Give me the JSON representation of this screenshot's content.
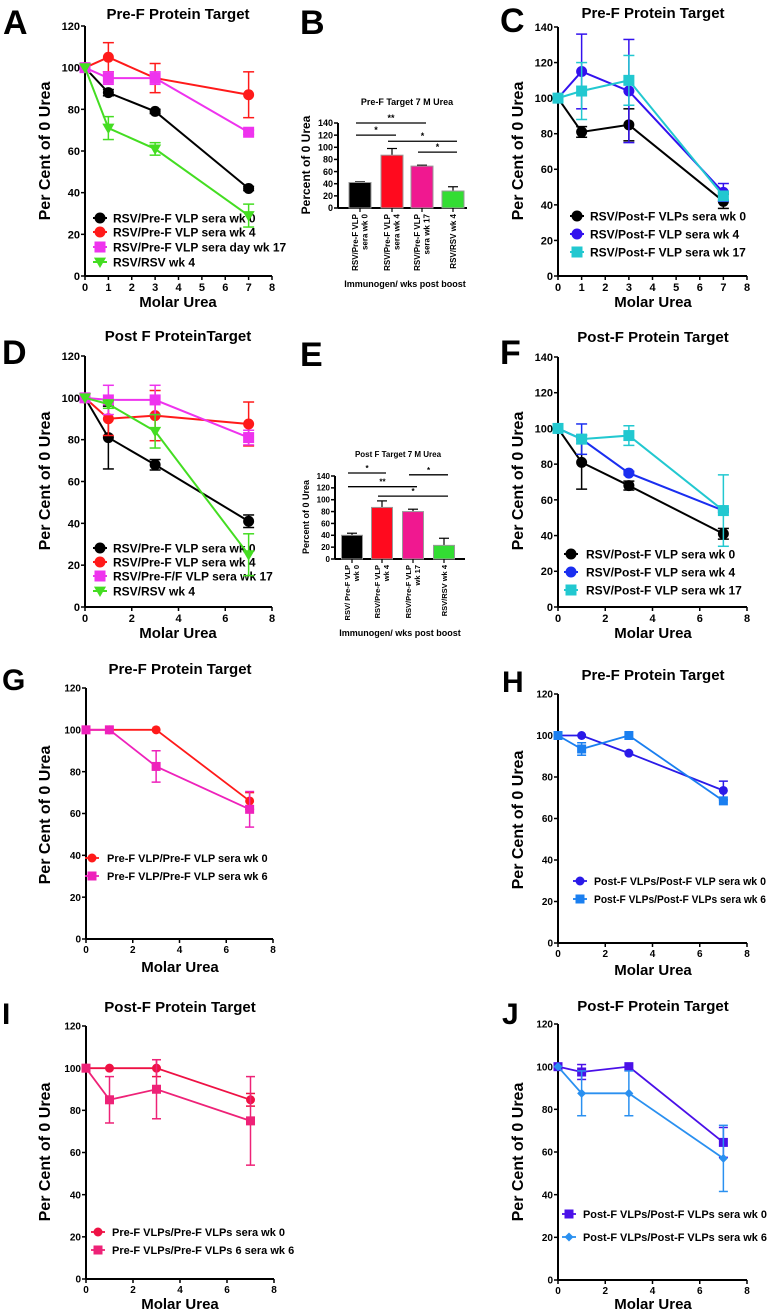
{
  "chart_data": [
    {
      "id": "A",
      "letter": "A",
      "type": "line",
      "title": "Pre-F Protein Target",
      "xlabel": "Molar Urea",
      "ylabel": "Per Cent of 0 Urea",
      "xlim": [
        0,
        8
      ],
      "ylim": [
        0,
        120
      ],
      "xticks": [
        0,
        1,
        2,
        3,
        4,
        5,
        6,
        7,
        8
      ],
      "yticks": [
        0,
        20,
        40,
        60,
        80,
        100,
        120
      ],
      "legend_position": "bottom-left",
      "series": [
        {
          "name": "RSV/Pre-F VLP sera wk 0",
          "color": "#000000",
          "marker": "circle",
          "x": [
            0,
            1,
            3,
            7
          ],
          "y": [
            100,
            88,
            79,
            42
          ],
          "err": [
            0,
            1.5,
            1,
            1
          ]
        },
        {
          "name": "RSV/Pre-F VLP sera wk 4",
          "color": "#ff1a1a",
          "marker": "circle",
          "x": [
            0,
            1,
            3,
            7
          ],
          "y": [
            100,
            105,
            95,
            87
          ],
          "err": [
            0,
            7,
            7,
            11
          ]
        },
        {
          "name": " RSV/Pre-F VLP sera day wk 17",
          "color": "#ee33ee",
          "marker": "square",
          "x": [
            0,
            1,
            3,
            7
          ],
          "y": [
            100,
            95,
            95,
            69
          ],
          "err": [
            0,
            3,
            3,
            1
          ]
        },
        {
          "name": "RSV/RSV wk 4",
          "color": "#44dd22",
          "marker": "triangle-down",
          "x": [
            0,
            1,
            3,
            7
          ],
          "y": [
            100,
            71,
            61,
            29
          ],
          "err": [
            0,
            5.5,
            3,
            5.5
          ]
        }
      ]
    },
    {
      "id": "B",
      "letter": "B",
      "type": "bar",
      "title": "Pre-F Target 7 M Urea",
      "xlabel": "Immunogen/ wks post boost",
      "ylabel": "Percent of 0 Urea",
      "ylim": [
        0,
        140
      ],
      "yticks": [
        0,
        20,
        40,
        60,
        80,
        100,
        120,
        140
      ],
      "categories": [
        [
          "RSV/Pre-F VLP",
          "sera wk 0"
        ],
        [
          "RSV/Pre-F VLP",
          "sera wk 4"
        ],
        [
          "RSV/Pre-F VLP",
          "sera wk 17"
        ],
        [
          "RSV/RSV wk 4"
        ]
      ],
      "values": [
        42,
        87,
        69,
        28
      ],
      "err": [
        1,
        11,
        1.5,
        7
      ],
      "colors": [
        "#000000",
        "#ff0a1e",
        "#f01890",
        "#33dd33"
      ],
      "significance": [
        {
          "from": 0,
          "to": 2,
          "y": 140,
          "label": "**"
        },
        {
          "from": 0,
          "to": 1,
          "y": 120,
          "label": "*"
        },
        {
          "from": 1,
          "to": 3,
          "y": 110,
          "label": "*"
        },
        {
          "from": 2,
          "to": 3,
          "y": 92,
          "label": "*"
        }
      ]
    },
    {
      "id": "C",
      "letter": "C",
      "type": "line",
      "title": "Pre-F Protein Target",
      "xlabel": "Molar Urea",
      "ylabel": "Per Cent of 0 Urea",
      "xlim": [
        0,
        8
      ],
      "ylim": [
        0,
        140
      ],
      "xticks": [
        0,
        1,
        2,
        3,
        4,
        5,
        6,
        7,
        8
      ],
      "yticks": [
        0,
        20,
        40,
        60,
        80,
        100,
        120,
        140
      ],
      "legend_position": "bottom-left",
      "series": [
        {
          "name": "RSV/Post-F VLPs sera wk 0",
          "color": "#000000",
          "marker": "circle",
          "x": [
            0,
            1,
            3,
            7
          ],
          "y": [
            100,
            81,
            85,
            42
          ],
          "err": [
            0,
            3,
            9,
            4
          ]
        },
        {
          "name": "RSV/Post-F VLP sera wk 4",
          "color": "#3311ee",
          "marker": "circle",
          "x": [
            0,
            1,
            3,
            7
          ],
          "y": [
            100,
            115,
            104,
            47
          ],
          "err": [
            0,
            21,
            29,
            5
          ]
        },
        {
          "name": "RSV/Post-F VLP sera wk 17",
          "color": "#22c8d0",
          "marker": "square",
          "x": [
            0,
            1,
            3,
            7
          ],
          "y": [
            100,
            104,
            110,
            45
          ],
          "err": [
            0,
            16,
            14,
            2
          ]
        }
      ]
    },
    {
      "id": "D",
      "letter": "D",
      "type": "line",
      "title": "Post F ProteinTarget",
      "xlabel": "Molar Urea",
      "ylabel": "Per Cent of 0 Urea",
      "xlim": [
        0,
        8
      ],
      "ylim": [
        0,
        120
      ],
      "xticks": [
        0,
        2,
        4,
        6,
        8
      ],
      "yticks": [
        0,
        20,
        40,
        60,
        80,
        100,
        120
      ],
      "legend_position": "bottom-left",
      "series": [
        {
          "name": "RSV/Pre-F VLP sera wk 0",
          "color": "#000000",
          "marker": "circle",
          "x": [
            0,
            1,
            3,
            7
          ],
          "y": [
            100,
            81,
            68,
            41
          ],
          "err": [
            0,
            15,
            2.5,
            3
          ]
        },
        {
          "name": "RSV/Pre-F VLP sera wk 4",
          "color": "#ff1a1a",
          "marker": "circle",
          "x": [
            0,
            1,
            3,
            7
          ],
          "y": [
            100,
            90,
            91.5,
            87.5
          ],
          "err": [
            0,
            8,
            12,
            10.5
          ]
        },
        {
          "name": "RSV/Pre-F/F VLP sera wk 17",
          "color": "#ee33ee",
          "marker": "square",
          "x": [
            0,
            1,
            3,
            7
          ],
          "y": [
            100,
            99,
            99,
            81
          ],
          "err": [
            0,
            7,
            7,
            3.5
          ]
        },
        {
          "name": "RSV/RSV wk 4",
          "color": "#44dd22",
          "marker": "triangle-down",
          "x": [
            0,
            1,
            3,
            7
          ],
          "y": [
            100,
            97,
            84,
            25
          ],
          "err": [
            0,
            2,
            8,
            10
          ]
        }
      ]
    },
    {
      "id": "E",
      "letter": "E",
      "type": "bar",
      "title": "Post F Target  7 M Urea",
      "xlabel": "Immunogen/ wks post boost",
      "ylabel": "Percent of 0 Urea",
      "ylim": [
        0,
        140
      ],
      "yticks": [
        0,
        20,
        40,
        60,
        80,
        100,
        120,
        140
      ],
      "categories": [
        [
          "RSV/ Pre-F VLP",
          "wk 0"
        ],
        [
          "RSV/Pre-F VLP",
          "wk 4"
        ],
        [
          "RSV/Pre-F VLP",
          "wk 17"
        ],
        [
          "RSV/RSV wk 4"
        ]
      ],
      "values": [
        40,
        87,
        80,
        23
      ],
      "err": [
        3.5,
        11,
        4,
        12
      ],
      "colors": [
        "#000000",
        "#ff0a1e",
        "#f01890",
        "#33dd33"
      ],
      "significance": [
        {
          "from": 0,
          "to": 1,
          "y": 145,
          "label": "*"
        },
        {
          "from": 0,
          "to": 2,
          "y": 122,
          "label": "**"
        },
        {
          "from": 1,
          "to": 3,
          "y": 106,
          "label": "*"
        },
        {
          "from": 2,
          "to": 3,
          "y": 142,
          "label": "*"
        }
      ]
    },
    {
      "id": "F",
      "letter": "F",
      "type": "line",
      "title": "Post-F Protein Target",
      "xlabel": "Molar Urea",
      "ylabel": "Per Cent of 0 Urea",
      "xlim": [
        0,
        8
      ],
      "ylim": [
        0,
        140
      ],
      "xticks": [
        0,
        2,
        4,
        6,
        8
      ],
      "yticks": [
        0,
        20,
        40,
        60,
        80,
        100,
        120,
        140
      ],
      "legend_position": "bottom-left",
      "series": [
        {
          "name": "RSV/Post-F VLP sera wk 0",
          "color": "#000000",
          "marker": "circle",
          "x": [
            0,
            1,
            3,
            7
          ],
          "y": [
            100,
            81,
            68,
            41
          ],
          "err": [
            0,
            15,
            2.5,
            3
          ]
        },
        {
          "name": "RSV/Post-F VLP sera wk 4",
          "color": "#1a2ef0",
          "marker": "circle",
          "x": [
            0,
            1,
            3,
            7
          ],
          "y": [
            100,
            94,
            75,
            54
          ],
          "err": [
            0,
            8.5,
            1,
            1
          ]
        },
        {
          "name": "RSV/Post-F VLP sera wk 17",
          "color": "#22c8d0",
          "marker": "square",
          "x": [
            0,
            1,
            3,
            7
          ],
          "y": [
            100,
            94,
            96,
            54
          ],
          "err": [
            0,
            2.5,
            5.5,
            20
          ]
        }
      ]
    },
    {
      "id": "G",
      "letter": "G",
      "type": "line",
      "title": "Pre-F Protein Target",
      "xlabel": "Molar Urea",
      "ylabel": "Per Cent of 0 Urea",
      "xlim": [
        0,
        8
      ],
      "ylim": [
        0,
        120
      ],
      "xticks": [
        0,
        2,
        4,
        6,
        8
      ],
      "yticks": [
        0,
        20,
        40,
        60,
        80,
        100,
        120
      ],
      "legend_position": "center-left",
      "series": [
        {
          "name": "Pre-F VLP/Pre-F VLP sera wk 0",
          "color": "#ff1a1a",
          "marker": "circle",
          "x": [
            0,
            1,
            3,
            7
          ],
          "y": [
            100,
            100,
            100,
            66
          ],
          "err": [
            0,
            0,
            0,
            4
          ]
        },
        {
          "name": "Pre-F VLP/Pre-F VLP sera wk 6",
          "color": "#ee22bb",
          "marker": "square",
          "x": [
            0,
            1,
            3,
            7
          ],
          "y": [
            100,
            100,
            82.5,
            62
          ],
          "err": [
            0,
            0,
            7.5,
            8.5
          ]
        }
      ]
    },
    {
      "id": "H",
      "letter": "H",
      "type": "line",
      "title": "Pre-F Protein Target",
      "xlabel": "Molar Urea",
      "ylabel": "Per Cent of 0 Urea",
      "xlim": [
        0,
        8
      ],
      "ylim": [
        0,
        120
      ],
      "xticks": [
        0,
        2,
        4,
        6,
        8
      ],
      "yticks": [
        0,
        20,
        40,
        60,
        80,
        100,
        120
      ],
      "legend_position": "bottom-left",
      "series": [
        {
          "name": "Post-F VLPs/Post-F VLP sera wk 0",
          "color": "#2a1ae8",
          "marker": "circle",
          "x": [
            0,
            1,
            3,
            7
          ],
          "y": [
            100,
            100,
            91.5,
            73.5
          ],
          "err": [
            0,
            0,
            0,
            4.5
          ]
        },
        {
          "name": "Post-F VLPs/Post-F VLPs  sera wk 6",
          "color": "#1a7ff0",
          "marker": "square",
          "x": [
            0,
            1,
            3,
            7
          ],
          "y": [
            100,
            93.5,
            100,
            68.5
          ],
          "err": [
            0,
            3,
            0,
            0
          ]
        }
      ]
    },
    {
      "id": "I",
      "letter": "I",
      "type": "line",
      "title": "Post-F Protein Target",
      "xlabel": "Molar Urea",
      "ylabel": "Per Cent of 0 Urea",
      "xlim": [
        0,
        8
      ],
      "ylim": [
        0,
        120
      ],
      "xticks": [
        0,
        2,
        4,
        6,
        8
      ],
      "yticks": [
        0,
        20,
        40,
        60,
        80,
        100,
        120
      ],
      "legend_position": "bottom-left",
      "series": [
        {
          "name": "Pre-F VLPs/Pre-F VLPs sera wk 0",
          "color": "#ee1144",
          "marker": "circle",
          "x": [
            0,
            1,
            3,
            7
          ],
          "y": [
            100,
            100,
            100,
            85
          ],
          "err": [
            0,
            0,
            4,
            3
          ]
        },
        {
          "name": "Pre-F VLPs/Pre-F VLPs 6 sera wk 6",
          "color": "#ee2277",
          "marker": "square",
          "x": [
            0,
            1,
            3,
            7
          ],
          "y": [
            100,
            85,
            90,
            75
          ],
          "err": [
            0,
            11,
            14,
            21
          ]
        }
      ]
    },
    {
      "id": "J",
      "letter": "J",
      "type": "line",
      "title": "Post-F Protein Target",
      "xlabel": "Molar Urea",
      "ylabel": "Per Cent of 0 Urea",
      "xlim": [
        0,
        8
      ],
      "ylim": [
        0,
        120
      ],
      "xticks": [
        0,
        2,
        4,
        6,
        8
      ],
      "yticks": [
        0,
        20,
        40,
        60,
        80,
        100,
        120
      ],
      "legend_position": "bottom-left",
      "series": [
        {
          "name": "Post-F VLPs/Post-F VLPs sera wk 0",
          "color": "#4a10e8",
          "marker": "square",
          "x": [
            0,
            1,
            3,
            7
          ],
          "y": [
            100,
            97.5,
            100,
            64.5
          ],
          "err": [
            0,
            3.5,
            0,
            7
          ]
        },
        {
          "name": "Post-F VLPs/Post-F VLPs sera wk 6",
          "color": "#2a90f0",
          "marker": "diamond",
          "x": [
            0,
            1,
            3,
            7
          ],
          "y": [
            100,
            87.5,
            87.5,
            57
          ],
          "err": [
            0,
            10.5,
            10.5,
            15.5
          ]
        }
      ]
    }
  ]
}
